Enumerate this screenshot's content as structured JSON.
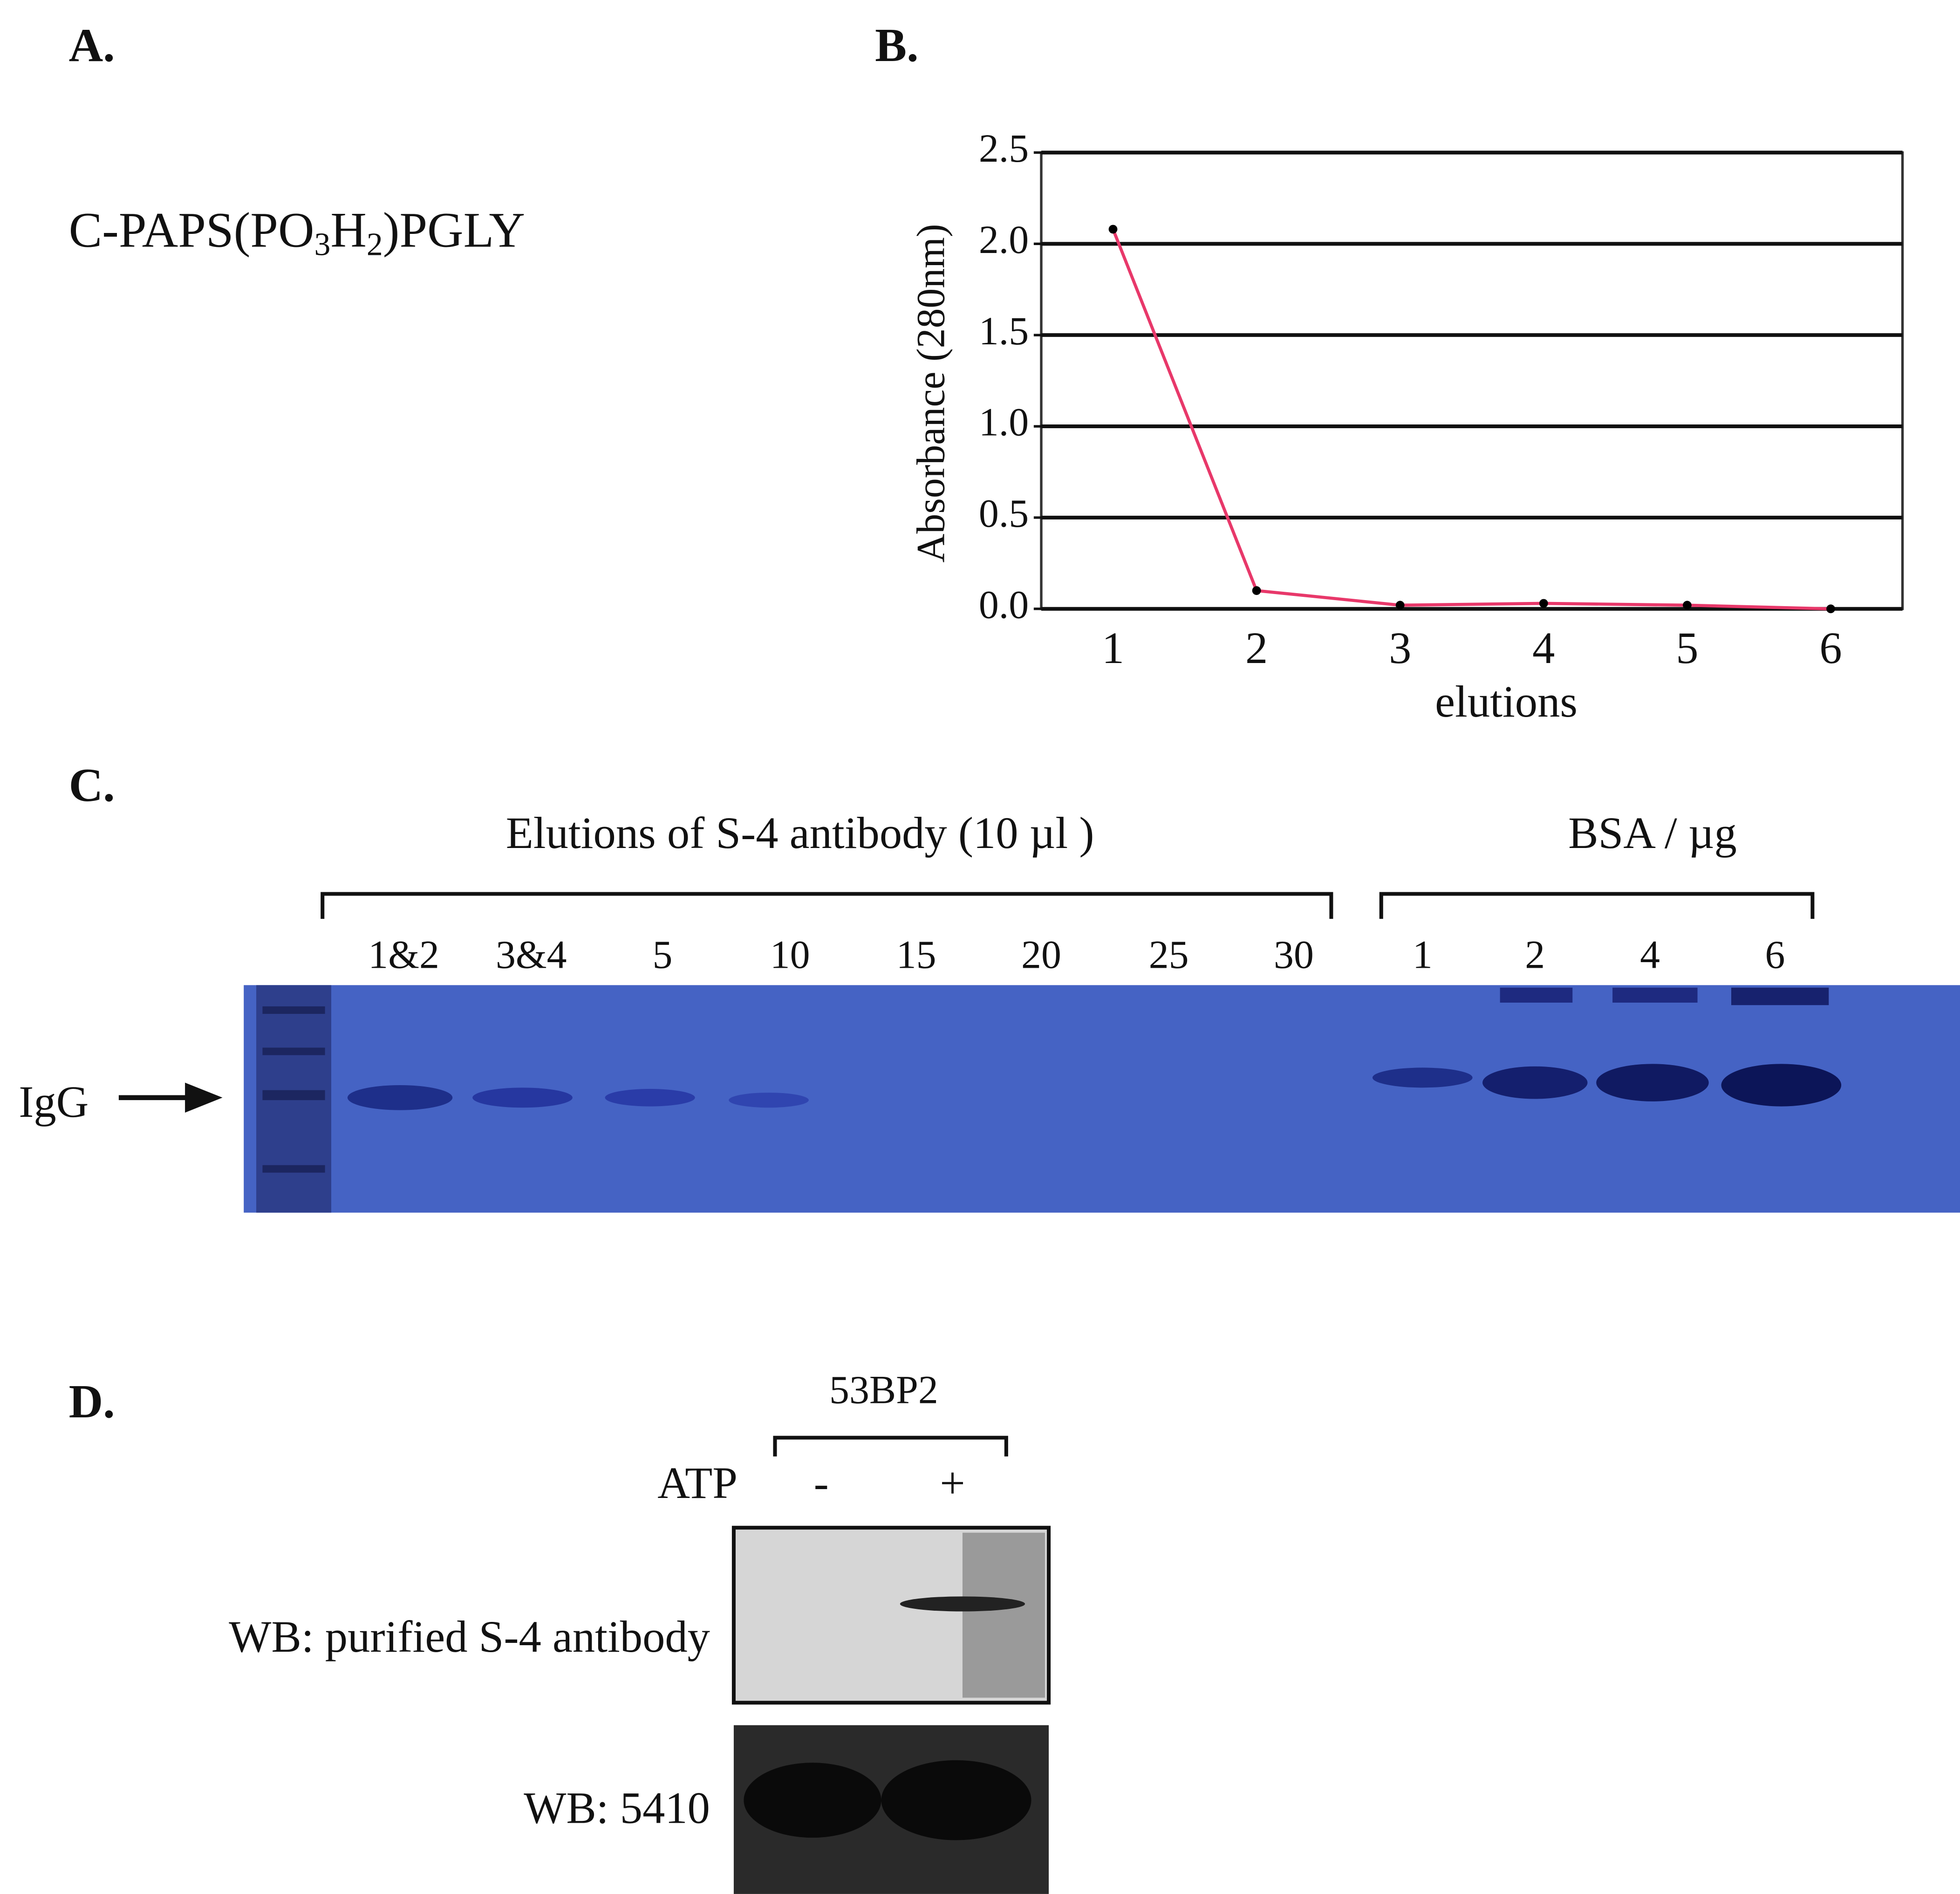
{
  "panel_a": {
    "label": "A.",
    "peptide": [
      "C-PAPS(PO",
      "3",
      "H",
      "2",
      ")PGLY"
    ]
  },
  "chart_data": {
    "type": "line",
    "title": "B.",
    "categories": [
      "1",
      "2",
      "3",
      "4",
      "5",
      "6"
    ],
    "values": [
      2.08,
      0.1,
      0.02,
      0.03,
      0.02,
      0.0
    ],
    "color": "#e8386a",
    "marker_color": "#000000",
    "ylim": [
      0,
      2.5
    ],
    "yticks": [
      {
        "value": 0,
        "label": "0.0"
      },
      0.5,
      {
        "value": 1,
        "label": "1.0"
      },
      1.5,
      {
        "value": 2,
        "label": "2.0"
      },
      2.5
    ],
    "xlabel": "elutions",
    "ylabel": "Absorbance (280nm)",
    "grid": true
  },
  "panel_c": {
    "label": "C.",
    "groups": [
      {
        "label": "Elutions of S-4 antibody (10 µl )",
        "lanes": [
          "1&2",
          "3&4",
          "5",
          "10",
          "15",
          "20",
          "25",
          "30"
        ]
      },
      {
        "label": "BSA / µg",
        "lanes": [
          "1",
          "2",
          "4",
          "6"
        ]
      }
    ],
    "marker": "IgG"
  },
  "panel_d": {
    "label": "D.",
    "group": "53BP2",
    "row_label": "ATP",
    "lanes": [
      "-",
      "+"
    ],
    "blots": [
      "WB: purified S-4 antibody",
      "WB: 5410"
    ]
  }
}
